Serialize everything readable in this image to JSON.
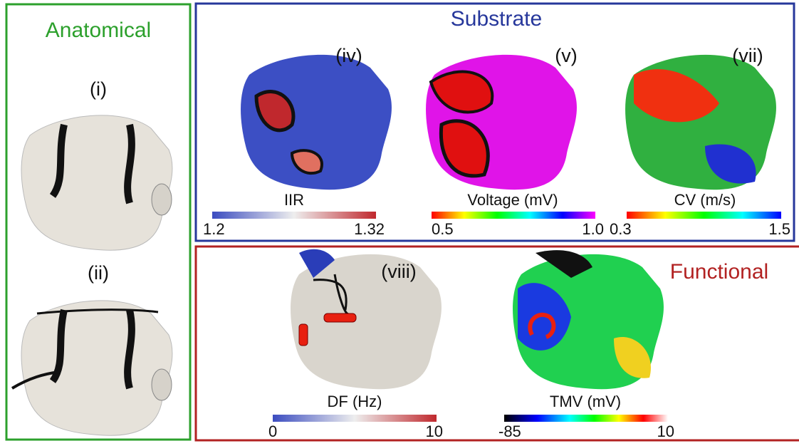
{
  "panels": {
    "anatomical": {
      "title": "Anatomical",
      "views": [
        "(i)",
        "(ii)"
      ]
    },
    "substrate": {
      "title": "Substrate",
      "maps": [
        {
          "label": "(iv)",
          "colorbar": {
            "title": "IIR",
            "min": "1.2",
            "max": "1.32"
          }
        },
        {
          "label": "(v)",
          "colorbar": {
            "title": "Voltage (mV)",
            "min": "0.5",
            "max": "1.0"
          }
        },
        {
          "label": "(vii)",
          "colorbar": {
            "title": "CV (m/s)",
            "min": "0.3",
            "max": "1.5"
          }
        }
      ]
    },
    "functional": {
      "title": "Functional",
      "maps": [
        {
          "label": "(viii)",
          "colorbar": {
            "title": "DF (Hz)",
            "min": "0",
            "max": "10"
          }
        },
        {
          "colorbar": {
            "title": "TMV (mV)",
            "min": "-85",
            "max": "10"
          }
        }
      ]
    }
  }
}
